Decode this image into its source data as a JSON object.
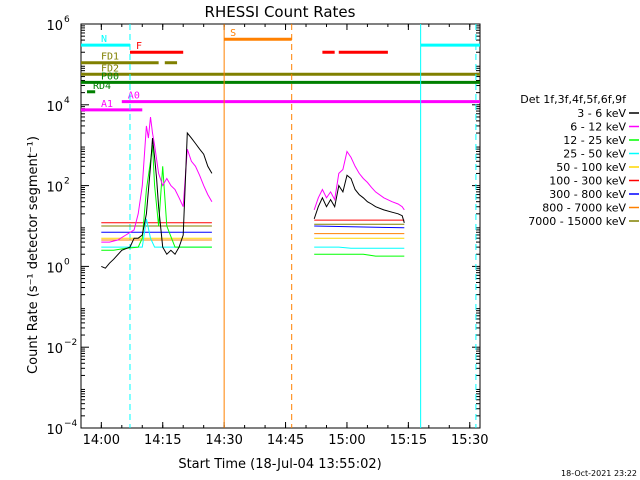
{
  "chart_data": {
    "type": "line",
    "title": "RHESSI Count Rates",
    "xlabel": "Start Time (18-Jul-04 13:55:02)",
    "ylabel": "Count Rate (s⁻¹ detector segment⁻¹)",
    "xlim": [
      "13:55:02",
      "15:32:30"
    ],
    "x_ticks": [
      "14:00",
      "14:15",
      "14:30",
      "14:45",
      "15:00",
      "15:15",
      "15:30"
    ],
    "ylim": [
      0.0001,
      1000000
    ],
    "yscale": "log",
    "y_ticks": [
      {
        "value": 0.0001,
        "label": "10",
        "exp": "−4"
      },
      {
        "value": 0.01,
        "label": "10",
        "exp": "−2"
      },
      {
        "value": 1,
        "label": "10",
        "exp": "0"
      },
      {
        "value": 100,
        "label": "10",
        "exp": "2"
      },
      {
        "value": 10000,
        "label": "10",
        "exp": "4"
      },
      {
        "value": 1000000,
        "label": "10",
        "exp": "6"
      }
    ],
    "legend_title": "Det 1f,3f,4f,5f,6f,9f",
    "legend_placement": "right",
    "series": [
      {
        "name": "3 - 6 keV",
        "color": "#000000",
        "segments": [
          [
            [
              "14:00:00",
              1.0
            ],
            [
              "14:01:00",
              0.9
            ],
            [
              "14:02:00",
              1.2
            ],
            [
              "14:03:00",
              1.5
            ],
            [
              "14:05:00",
              2.5
            ],
            [
              "14:07:00",
              3.0
            ],
            [
              "14:08:00",
              5
            ],
            [
              "14:09:00",
              5
            ],
            [
              "14:10:00",
              6
            ],
            [
              "14:11:00",
              20
            ],
            [
              "14:12:00",
              300
            ],
            [
              "14:12:30",
              1500
            ],
            [
              "14:13:00",
              500
            ],
            [
              "14:13:30",
              150
            ],
            [
              "14:14:00",
              30
            ],
            [
              "14:15:00",
              3
            ],
            [
              "14:16:00",
              2
            ],
            [
              "14:17:00",
              2.5
            ],
            [
              "14:18:00",
              2
            ],
            [
              "14:19:00",
              3
            ],
            [
              "14:20:00",
              6
            ],
            [
              "14:21:00",
              2000
            ],
            [
              "14:22:00",
              1500
            ],
            [
              "14:23:00",
              1100
            ],
            [
              "14:24:00",
              800
            ],
            [
              "14:25:00",
              600
            ],
            [
              "14:26:00",
              300
            ],
            [
              "14:27:00",
              200
            ]
          ],
          [
            [
              "14:52:00",
              15
            ],
            [
              "14:53:00",
              30
            ],
            [
              "14:54:00",
              50
            ],
            [
              "14:55:00",
              30
            ],
            [
              "14:56:00",
              45
            ],
            [
              "14:57:00",
              30
            ],
            [
              "14:58:00",
              100
            ],
            [
              "14:59:00",
              70
            ],
            [
              "15:00:00",
              180
            ],
            [
              "15:01:00",
              150
            ],
            [
              "15:02:00",
              80
            ],
            [
              "15:03:00",
              60
            ],
            [
              "15:04:00",
              50
            ],
            [
              "15:05:00",
              40
            ],
            [
              "15:06:00",
              35
            ],
            [
              "15:07:00",
              30
            ],
            [
              "15:09:00",
              25
            ],
            [
              "15:11:00",
              22
            ],
            [
              "15:12:30",
              20
            ],
            [
              "15:13:30",
              18
            ],
            [
              "15:14:00",
              12
            ]
          ]
        ]
      },
      {
        "name": "6 - 12 keV",
        "color": "#ff00ff",
        "segments": [
          [
            [
              "14:00:00",
              4
            ],
            [
              "14:02:00",
              4
            ],
            [
              "14:04:00",
              4.5
            ],
            [
              "14:06:00",
              6
            ],
            [
              "14:08:00",
              8
            ],
            [
              "14:09:00",
              20
            ],
            [
              "14:10:00",
              100
            ],
            [
              "14:11:00",
              3000
            ],
            [
              "14:11:30",
              1500
            ],
            [
              "14:12:00",
              5000
            ],
            [
              "14:12:30",
              2000
            ],
            [
              "14:13:00",
              1000
            ],
            [
              "14:14:00",
              200
            ],
            [
              "14:15:00",
              100
            ],
            [
              "14:16:00",
              150
            ],
            [
              "14:17:00",
              100
            ],
            [
              "14:18:00",
              80
            ],
            [
              "14:19:00",
              50
            ],
            [
              "14:20:00",
              30
            ],
            [
              "14:21:00",
              800
            ],
            [
              "14:22:00",
              400
            ],
            [
              "14:23:00",
              300
            ],
            [
              "14:24:00",
              180
            ],
            [
              "14:25:00",
              100
            ],
            [
              "14:26:00",
              60
            ],
            [
              "14:27:00",
              40
            ]
          ],
          [
            [
              "14:52:00",
              25
            ],
            [
              "14:53:00",
              50
            ],
            [
              "14:54:00",
              80
            ],
            [
              "14:55:00",
              50
            ],
            [
              "14:56:00",
              70
            ],
            [
              "14:57:00",
              45
            ],
            [
              "14:58:00",
              200
            ],
            [
              "14:59:00",
              250
            ],
            [
              "15:00:00",
              700
            ],
            [
              "15:01:00",
              500
            ],
            [
              "15:02:00",
              300
            ],
            [
              "15:03:00",
              200
            ],
            [
              "15:04:00",
              150
            ],
            [
              "15:05:00",
              120
            ],
            [
              "15:06:00",
              90
            ],
            [
              "15:07:00",
              70
            ],
            [
              "15:09:00",
              50
            ],
            [
              "15:11:00",
              40
            ],
            [
              "15:12:30",
              35
            ],
            [
              "15:13:30",
              30
            ],
            [
              "15:14:00",
              25
            ]
          ]
        ]
      },
      {
        "name": "12 - 25 keV",
        "color": "#00ff00",
        "segments": [
          [
            [
              "14:00:00",
              2.5
            ],
            [
              "14:03:00",
              2.5
            ],
            [
              "14:06:00",
              2.8
            ],
            [
              "14:09:00",
              3
            ],
            [
              "14:10:00",
              5
            ],
            [
              "14:11:00",
              80
            ],
            [
              "14:12:00",
              400
            ],
            [
              "14:12:30",
              1000
            ],
            [
              "14:13:00",
              100
            ],
            [
              "14:14:00",
              10
            ],
            [
              "14:15:00",
              300
            ],
            [
              "14:16:00",
              10
            ],
            [
              "14:18:00",
              3
            ],
            [
              "14:21:00",
              3
            ],
            [
              "14:24:00",
              3
            ],
            [
              "14:27:00",
              3
            ]
          ],
          [
            [
              "14:52:00",
              2
            ],
            [
              "14:55:00",
              2
            ],
            [
              "14:58:00",
              2
            ],
            [
              "15:01:00",
              2
            ],
            [
              "15:04:00",
              2
            ],
            [
              "15:07:00",
              1.8
            ],
            [
              "15:10:00",
              1.8
            ],
            [
              "15:14:00",
              1.8
            ]
          ]
        ]
      },
      {
        "name": "25 - 50 keV",
        "color": "#00ffff",
        "segments": [
          [
            [
              "14:00:00",
              3
            ],
            [
              "14:03:00",
              3
            ],
            [
              "14:06:00",
              3
            ],
            [
              "14:09:00",
              3
            ],
            [
              "14:10:00",
              3
            ],
            [
              "14:11:00",
              15
            ],
            [
              "14:12:00",
              5
            ],
            [
              "14:13:00",
              3
            ],
            [
              "14:16:00",
              3
            ],
            [
              "14:19:00",
              3
            ],
            [
              "14:22:00",
              3
            ],
            [
              "14:25:00",
              3
            ],
            [
              "14:27:00",
              3
            ]
          ],
          [
            [
              "14:52:00",
              3
            ],
            [
              "14:55:00",
              3
            ],
            [
              "14:58:00",
              3
            ],
            [
              "15:01:00",
              2.8
            ],
            [
              "15:04:00",
              2.8
            ],
            [
              "15:07:00",
              2.8
            ],
            [
              "15:10:00",
              2.8
            ],
            [
              "15:14:00",
              2.8
            ]
          ]
        ]
      },
      {
        "name": "50 - 100 keV",
        "color": "#ffd700",
        "segments": [
          [
            [
              "14:00:00",
              5
            ],
            [
              "14:27:00",
              5
            ]
          ],
          [
            [
              "14:52:00",
              5
            ],
            [
              "15:14:00",
              5
            ]
          ]
        ]
      },
      {
        "name": "100 - 300 keV",
        "color": "#ff0000",
        "segments": [
          [
            [
              "14:00:00",
              12
            ],
            [
              "14:27:00",
              12
            ]
          ],
          [
            [
              "14:52:00",
              14
            ],
            [
              "15:14:00",
              14
            ]
          ]
        ]
      },
      {
        "name": "300 - 800 keV",
        "color": "#0000ff",
        "segments": [
          [
            [
              "14:00:00",
              7
            ],
            [
              "14:27:00",
              7
            ]
          ],
          [
            [
              "14:52:00",
              10
            ],
            [
              "15:14:00",
              9
            ]
          ]
        ]
      },
      {
        "name": "800 - 7000 keV",
        "color": "#ff8000",
        "segments": [
          [
            [
              "14:00:00",
              4.5
            ],
            [
              "14:27:00",
              4.5
            ]
          ],
          [
            [
              "14:52:00",
              6.5
            ],
            [
              "15:14:00",
              6.5
            ]
          ]
        ]
      },
      {
        "name": "7000 - 15000 keV",
        "color": "#808000",
        "segments": [
          [
            [
              "14:00:00",
              10
            ],
            [
              "14:27:00",
              10
            ]
          ],
          [
            [
              "14:52:00",
              11
            ],
            [
              "15:14:00",
              11
            ]
          ]
        ]
      }
    ],
    "annotations": [
      {
        "label": "N",
        "color": "#00ffff",
        "y": 300000,
        "x_ranges": [
          [
            "13:55:02",
            "14:07:00"
          ],
          [
            "15:18:00",
            "15:32:30"
          ]
        ]
      },
      {
        "label": "S",
        "color": "#ff8000",
        "y": 420000,
        "x_ranges": [
          [
            "14:30:00",
            "14:46:30"
          ]
        ]
      },
      {
        "label": "F",
        "color": "#ff0000",
        "y": 200000,
        "x_ranges": [
          [
            "14:07:00",
            "14:20:00"
          ],
          [
            "14:54:00",
            "14:57:00"
          ],
          [
            "14:58:00",
            "15:10:00"
          ]
        ]
      },
      {
        "label": "FD1",
        "color": "#808000",
        "y": 110000,
        "x_ranges": [
          [
            "13:55:02",
            "14:14:00"
          ],
          [
            "14:15:30",
            "14:18:30"
          ]
        ]
      },
      {
        "label": "FD2",
        "color": "#808000",
        "y": 57000,
        "x_ranges": [
          [
            "13:55:02",
            "15:32:30"
          ]
        ]
      },
      {
        "label": "P00",
        "color": "#008000",
        "y": 36000,
        "x_ranges": [
          [
            "13:55:02",
            "15:32:30"
          ]
        ]
      },
      {
        "label": "RD4",
        "color": "#008000",
        "y": 21000,
        "x_ranges": [
          [
            "13:56:30",
            "13:58:30"
          ]
        ]
      },
      {
        "label": "A0",
        "color": "#ff00ff",
        "y": 12000,
        "x_ranges": [
          [
            "14:05:00",
            "15:32:30"
          ]
        ]
      },
      {
        "label": "A1",
        "color": "#ff00ff",
        "y": 7500,
        "x_ranges": [
          [
            "13:55:02",
            "14:10:00"
          ]
        ]
      }
    ],
    "vertical_markers": [
      {
        "time": "14:07:00",
        "color": "#00ffff",
        "style": "dashed"
      },
      {
        "time": "14:30:00",
        "color": "#ff8000",
        "style": "solid"
      },
      {
        "time": "14:46:30",
        "color": "#ff8000",
        "style": "dashed"
      },
      {
        "time": "15:18:00",
        "color": "#00ffff",
        "style": "solid"
      },
      {
        "time": "15:31:30",
        "color": "#00ffff",
        "style": "dashed"
      }
    ]
  },
  "footer": {
    "timestamp": "18-Oct-2021 23:22"
  }
}
